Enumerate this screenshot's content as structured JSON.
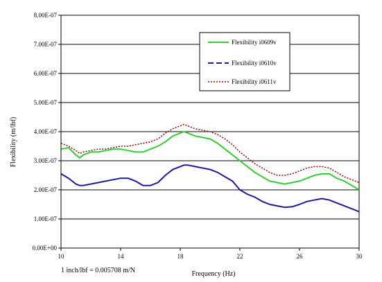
{
  "chart_data": {
    "type": "line",
    "xlabel": "Frequency (Hz)",
    "ylabel": "Flexibility (m/lbf)",
    "xlim": [
      10,
      30
    ],
    "ylim": [
      0,
      8e-07
    ],
    "x_ticks": [
      10,
      14,
      18,
      22,
      26,
      30
    ],
    "x_tick_labels": [
      "10",
      "14",
      "18",
      "22",
      "26",
      "30"
    ],
    "y_ticks": [
      0,
      1e-07,
      2e-07,
      3e-07,
      4e-07,
      5e-07,
      6e-07,
      7e-07,
      8e-07
    ],
    "y_tick_labels": [
      "0.00E+00",
      "1.00E-07",
      "2.00E-07",
      "3.00E-07",
      "4.00E-07",
      "5.00E-07",
      "6.00E-07",
      "7.00E-07",
      "8.00E-07"
    ],
    "grid": "horizontal",
    "legend_position": "top-right",
    "annotation": "1 inch/lbf = 0.005708 m/N",
    "x": [
      10,
      10.5,
      11,
      11.25,
      11.5,
      12,
      12.5,
      13,
      13.5,
      14,
      14.5,
      15,
      15.5,
      16,
      16.5,
      17,
      17.5,
      18,
      18.25,
      18.5,
      19,
      19.5,
      20,
      20.5,
      21,
      21.5,
      22,
      22.5,
      23,
      23.5,
      24,
      24.5,
      25,
      25.5,
      26,
      26.5,
      27,
      27.5,
      28,
      28.5,
      29,
      29.5,
      30
    ],
    "series": [
      {
        "name": "Flexibility i0609v",
        "color": "#33cc33",
        "style": "solid",
        "values": [
          3.4e-07,
          3.45e-07,
          3.2e-07,
          3.1e-07,
          3.2e-07,
          3.3e-07,
          3.3e-07,
          3.35e-07,
          3.4e-07,
          3.4e-07,
          3.35e-07,
          3.3e-07,
          3.3e-07,
          3.4e-07,
          3.5e-07,
          3.65e-07,
          3.85e-07,
          3.95e-07,
          4e-07,
          3.95e-07,
          3.85e-07,
          3.8e-07,
          3.75e-07,
          3.6e-07,
          3.4e-07,
          3.2e-07,
          3e-07,
          2.8e-07,
          2.6e-07,
          2.45e-07,
          2.3e-07,
          2.25e-07,
          2.2e-07,
          2.25e-07,
          2.3e-07,
          2.4e-07,
          2.5e-07,
          2.55e-07,
          2.55e-07,
          2.4e-07,
          2.3e-07,
          2.15e-07,
          2e-07
        ]
      },
      {
        "name": "Flexibility i0610v",
        "color": "#1a1a99",
        "style": "solid",
        "values": [
          2.55e-07,
          2.4e-07,
          2.2e-07,
          2.15e-07,
          2.15e-07,
          2.2e-07,
          2.25e-07,
          2.3e-07,
          2.35e-07,
          2.4e-07,
          2.4e-07,
          2.3e-07,
          2.15e-07,
          2.15e-07,
          2.25e-07,
          2.5e-07,
          2.7e-07,
          2.8e-07,
          2.85e-07,
          2.85e-07,
          2.8e-07,
          2.75e-07,
          2.7e-07,
          2.6e-07,
          2.45e-07,
          2.3e-07,
          2e-07,
          1.85e-07,
          1.75e-07,
          1.6e-07,
          1.5e-07,
          1.45e-07,
          1.4e-07,
          1.42e-07,
          1.5e-07,
          1.6e-07,
          1.65e-07,
          1.7e-07,
          1.65e-07,
          1.55e-07,
          1.45e-07,
          1.35e-07,
          1.25e-07
        ]
      },
      {
        "name": "Flexibility i0611v",
        "color": "#990000",
        "style": "dotted",
        "values": [
          3.6e-07,
          3.5e-07,
          3.35e-07,
          3.25e-07,
          3.3e-07,
          3.35e-07,
          3.4e-07,
          3.4e-07,
          3.45e-07,
          3.5e-07,
          3.5e-07,
          3.55e-07,
          3.6e-07,
          3.65e-07,
          3.75e-07,
          3.95e-07,
          4.1e-07,
          4.2e-07,
          4.25e-07,
          4.2e-07,
          4.1e-07,
          4.05e-07,
          4e-07,
          3.9e-07,
          3.75e-07,
          3.55e-07,
          3.3e-07,
          3.1e-07,
          2.9e-07,
          2.75e-07,
          2.6e-07,
          2.5e-07,
          2.5e-07,
          2.55e-07,
          2.65e-07,
          2.75e-07,
          2.8e-07,
          2.8e-07,
          2.75e-07,
          2.6e-07,
          2.45e-07,
          2.35e-07,
          2.25e-07
        ]
      }
    ]
  }
}
